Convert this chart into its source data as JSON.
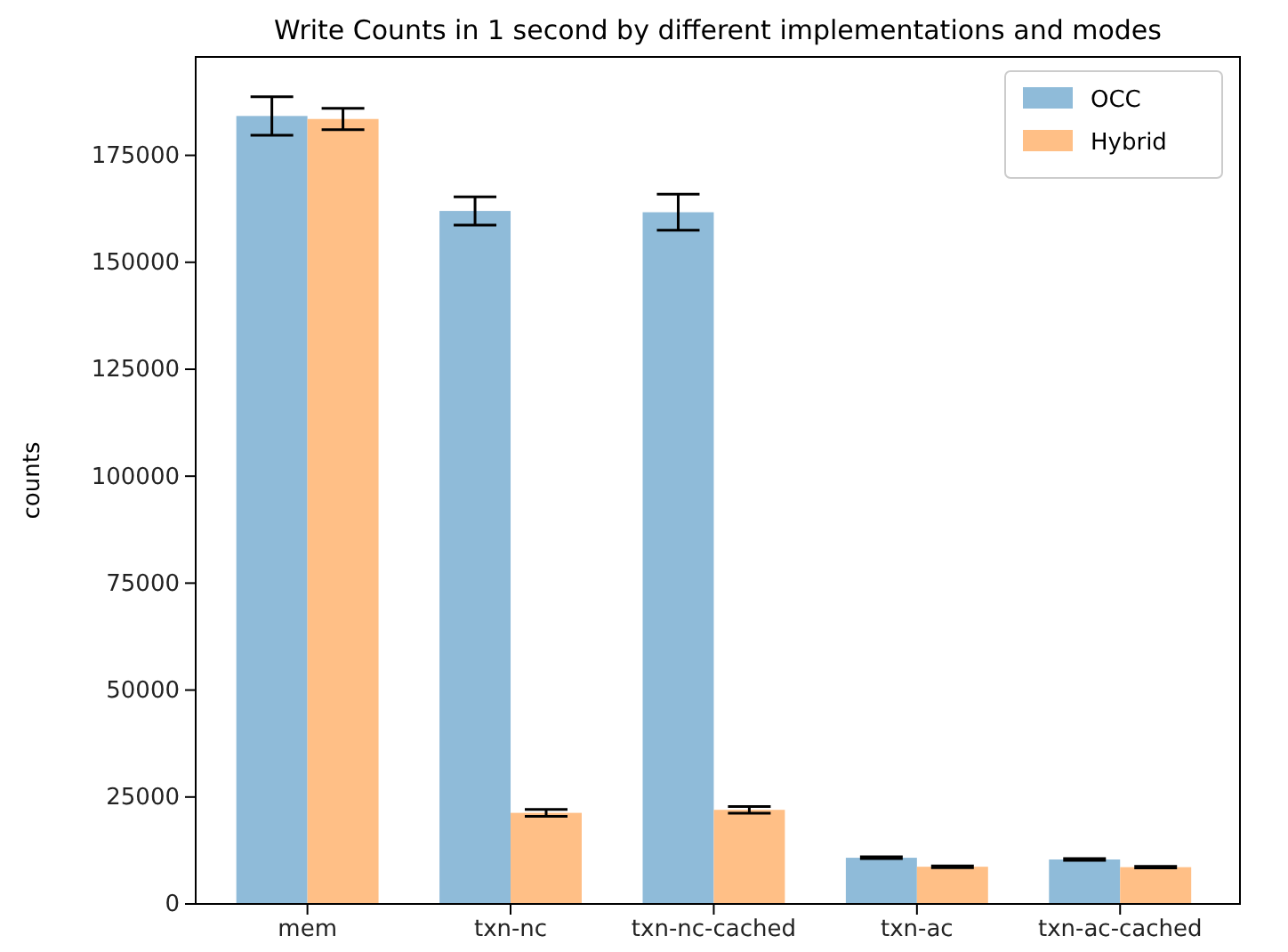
{
  "chart_data": {
    "type": "bar",
    "title": "Write Counts in 1 second by different implementations and modes",
    "ylabel": "counts",
    "categories": [
      "mem",
      "txn-nc",
      "txn-nc-cached",
      "txn-ac",
      "txn-ac-cached"
    ],
    "series": [
      {
        "name": "OCC",
        "color": "#8fbbd9",
        "values": [
          184200,
          162000,
          161700,
          10800,
          10400
        ],
        "errors": [
          4500,
          3300,
          4200,
          200,
          200
        ]
      },
      {
        "name": "Hybrid",
        "color": "#ffbf86",
        "values": [
          183500,
          21300,
          22000,
          8700,
          8600
        ],
        "errors": [
          2500,
          800,
          800,
          200,
          200
        ]
      }
    ],
    "ylim": [
      0,
      198000
    ],
    "yticks": [
      0,
      25000,
      50000,
      75000,
      100000,
      125000,
      150000,
      175000
    ],
    "legend": "top right",
    "grid": false
  }
}
